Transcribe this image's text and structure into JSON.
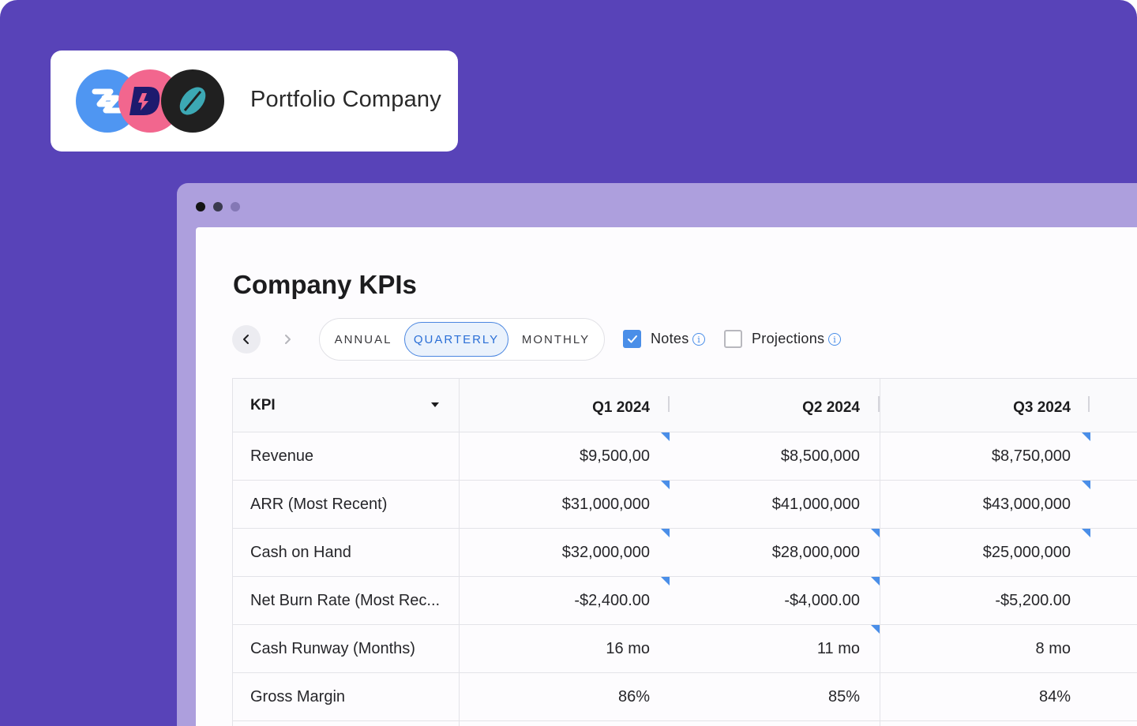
{
  "portfolio": {
    "title": "Portfolio Company"
  },
  "page": {
    "title": "Company KPIs"
  },
  "toolbar": {
    "periods": [
      "ANNUAL",
      "QUARTERLY",
      "MONTHLY"
    ],
    "selected_period": "QUARTERLY",
    "notes_label": "Notes",
    "notes_checked": true,
    "projections_label": "Projections",
    "projections_checked": false
  },
  "table": {
    "kpi_header": "KPI",
    "columns": [
      "Q1 2024",
      "Q2 2024",
      "Q3 2024"
    ],
    "rows": [
      {
        "kpi": "Revenue",
        "values": [
          "$9,500,00",
          "$8,500,000",
          "$8,750,000"
        ]
      },
      {
        "kpi": "ARR (Most Recent)",
        "values": [
          "$31,000,000",
          "$41,000,000",
          "$43,000,000"
        ]
      },
      {
        "kpi": "Cash on Hand",
        "values": [
          "$32,000,000",
          "$28,000,000",
          "$25,000,000"
        ]
      },
      {
        "kpi": "Net Burn Rate (Most Rec...",
        "values": [
          "-$2,400.00",
          "-$4,000.00",
          "-$5,200.00"
        ]
      },
      {
        "kpi": "Cash Runway (Months)",
        "values": [
          "16 mo",
          "11 mo",
          "8 mo"
        ]
      },
      {
        "kpi": "Gross Margin",
        "values": [
          "86%",
          "85%",
          "84%"
        ]
      }
    ]
  },
  "colors": {
    "background": "#5843b8",
    "window_frame": "#ad9fdd",
    "accent": "#4a8ee8",
    "selected_tab": "#2b6fd6"
  }
}
